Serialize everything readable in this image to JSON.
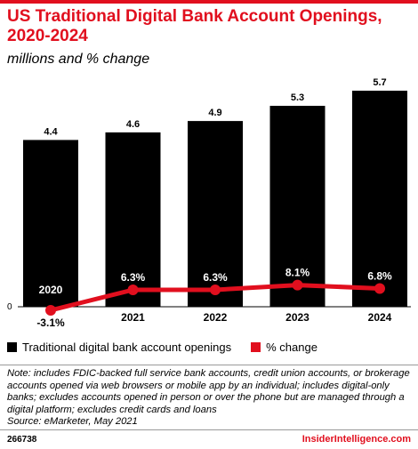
{
  "header": {
    "title": "US Traditional Digital Bank Account Openings, 2020-2024",
    "subtitle": "millions and % change"
  },
  "chart_data": {
    "type": "bar",
    "categories": [
      "2020",
      "2021",
      "2022",
      "2023",
      "2024"
    ],
    "series": [
      {
        "name": "Traditional digital bank account openings",
        "values": [
          4.4,
          4.6,
          4.9,
          5.3,
          5.7
        ],
        "labels": [
          "4.4",
          "4.6",
          "4.9",
          "5.3",
          "5.7"
        ],
        "color": "#000000",
        "kind": "bar"
      },
      {
        "name": "% change",
        "values": [
          -3.1,
          6.3,
          6.3,
          8.1,
          6.8
        ],
        "labels": [
          "-3.1%",
          "6.3%",
          "6.3%",
          "8.1%",
          "6.8%"
        ],
        "color": "#e10f1e",
        "kind": "line"
      }
    ],
    "axis_zero_label": "0",
    "legend_position": "bottom-left",
    "grid": false
  },
  "legend": {
    "items": [
      {
        "label": "Traditional digital bank account openings",
        "color": "#000000"
      },
      {
        "label": "% change",
        "color": "#e10f1e"
      }
    ]
  },
  "footer": {
    "note": "Note: includes FDIC-backed full service bank accounts, credit union accounts, or brokerage accounts opened via web browsers or mobile app by an individual; includes digital-only banks; excludes accounts opened in person or over the phone but are managed through a digital platform; excludes credit cards and loans",
    "source": "Source: eMarketer, May 2021",
    "chart_id": "266738",
    "brand": "InsiderIntelligence.com"
  },
  "colors": {
    "accent": "#e10f1e",
    "bar": "#000000"
  }
}
